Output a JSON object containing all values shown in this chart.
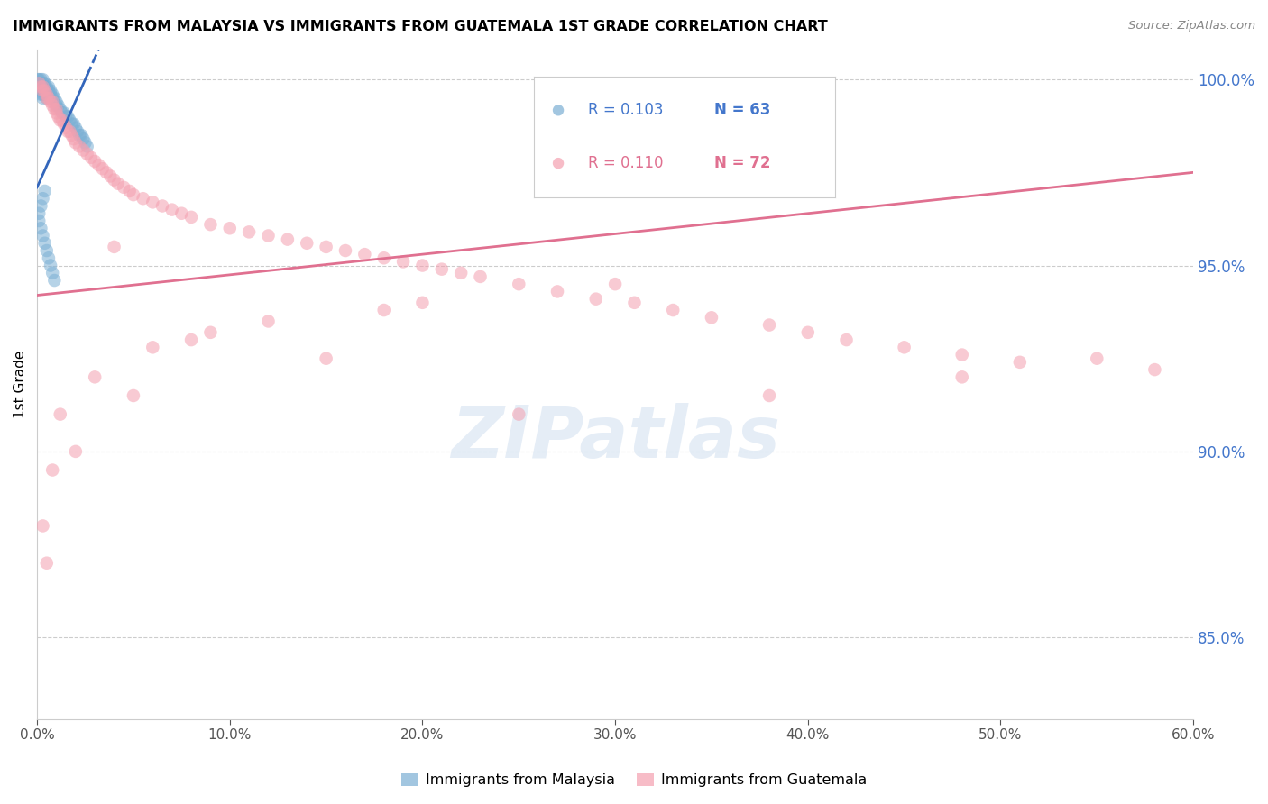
{
  "title": "IMMIGRANTS FROM MALAYSIA VS IMMIGRANTS FROM GUATEMALA 1ST GRADE CORRELATION CHART",
  "source": "Source: ZipAtlas.com",
  "ylabel_left": "1st Grade",
  "legend_label1": "Immigrants from Malaysia",
  "legend_label2": "Immigrants from Guatemala",
  "R1": 0.103,
  "N1": 63,
  "R2": 0.11,
  "N2": 72,
  "color1": "#7BAFD4",
  "color2": "#F4A0B0",
  "line_color1": "#3366BB",
  "line_color2": "#E07090",
  "xmin": 0.0,
  "xmax": 0.6,
  "ymin": 0.828,
  "ymax": 1.008,
  "yticks": [
    0.85,
    0.9,
    0.95,
    1.0
  ],
  "xticks": [
    0.0,
    0.1,
    0.2,
    0.3,
    0.4,
    0.5,
    0.6
  ],
  "malaysia_x": [
    0.0005,
    0.001,
    0.001,
    0.001,
    0.001,
    0.002,
    0.002,
    0.002,
    0.002,
    0.002,
    0.003,
    0.003,
    0.003,
    0.003,
    0.003,
    0.003,
    0.004,
    0.004,
    0.004,
    0.004,
    0.005,
    0.005,
    0.005,
    0.005,
    0.006,
    0.006,
    0.006,
    0.007,
    0.007,
    0.008,
    0.008,
    0.009,
    0.01,
    0.01,
    0.011,
    0.012,
    0.013,
    0.014,
    0.015,
    0.016,
    0.017,
    0.018,
    0.019,
    0.02,
    0.021,
    0.022,
    0.023,
    0.024,
    0.025,
    0.026,
    0.004,
    0.003,
    0.002,
    0.001,
    0.001,
    0.002,
    0.003,
    0.004,
    0.005,
    0.006,
    0.007,
    0.008,
    0.009
  ],
  "malaysia_y": [
    1.0,
    1.0,
    0.999,
    0.999,
    0.998,
    1.0,
    0.999,
    0.998,
    0.997,
    0.996,
    1.0,
    0.999,
    0.998,
    0.997,
    0.996,
    0.995,
    0.999,
    0.998,
    0.997,
    0.996,
    0.998,
    0.997,
    0.996,
    0.995,
    0.998,
    0.997,
    0.996,
    0.997,
    0.996,
    0.996,
    0.995,
    0.995,
    0.994,
    0.993,
    0.993,
    0.992,
    0.991,
    0.991,
    0.99,
    0.99,
    0.989,
    0.988,
    0.988,
    0.987,
    0.986,
    0.985,
    0.985,
    0.984,
    0.983,
    0.982,
    0.97,
    0.968,
    0.966,
    0.964,
    0.962,
    0.96,
    0.958,
    0.956,
    0.954,
    0.952,
    0.95,
    0.948,
    0.946
  ],
  "guatemala_x": [
    0.001,
    0.002,
    0.003,
    0.003,
    0.004,
    0.005,
    0.005,
    0.006,
    0.007,
    0.008,
    0.008,
    0.009,
    0.01,
    0.01,
    0.011,
    0.012,
    0.013,
    0.014,
    0.015,
    0.016,
    0.017,
    0.018,
    0.019,
    0.02,
    0.022,
    0.024,
    0.026,
    0.028,
    0.03,
    0.032,
    0.034,
    0.036,
    0.038,
    0.04,
    0.042,
    0.045,
    0.048,
    0.05,
    0.055,
    0.06,
    0.065,
    0.07,
    0.075,
    0.08,
    0.09,
    0.1,
    0.11,
    0.12,
    0.13,
    0.14,
    0.15,
    0.16,
    0.17,
    0.18,
    0.19,
    0.2,
    0.21,
    0.22,
    0.23,
    0.25,
    0.27,
    0.29,
    0.31,
    0.33,
    0.35,
    0.38,
    0.4,
    0.42,
    0.45,
    0.48,
    0.51,
    0.58
  ],
  "guatemala_y": [
    0.999,
    0.998,
    0.998,
    0.997,
    0.997,
    0.996,
    0.995,
    0.995,
    0.994,
    0.994,
    0.993,
    0.992,
    0.992,
    0.991,
    0.99,
    0.989,
    0.989,
    0.988,
    0.987,
    0.986,
    0.986,
    0.985,
    0.984,
    0.983,
    0.982,
    0.981,
    0.98,
    0.979,
    0.978,
    0.977,
    0.976,
    0.975,
    0.974,
    0.973,
    0.972,
    0.971,
    0.97,
    0.969,
    0.968,
    0.967,
    0.966,
    0.965,
    0.964,
    0.963,
    0.961,
    0.96,
    0.959,
    0.958,
    0.957,
    0.956,
    0.955,
    0.954,
    0.953,
    0.952,
    0.951,
    0.95,
    0.949,
    0.948,
    0.947,
    0.945,
    0.943,
    0.941,
    0.94,
    0.938,
    0.936,
    0.934,
    0.932,
    0.93,
    0.928,
    0.926,
    0.924,
    0.922
  ],
  "extra_guatemala_x": [
    0.003,
    0.005,
    0.008,
    0.012,
    0.02,
    0.03,
    0.05,
    0.08,
    0.15,
    0.25,
    0.38,
    0.48,
    0.55,
    0.2,
    0.3,
    0.12,
    0.18,
    0.06,
    0.09,
    0.04
  ],
  "extra_guatemala_y": [
    0.88,
    0.87,
    0.895,
    0.91,
    0.9,
    0.92,
    0.915,
    0.93,
    0.925,
    0.91,
    0.915,
    0.92,
    0.925,
    0.94,
    0.945,
    0.935,
    0.938,
    0.928,
    0.932,
    0.955
  ]
}
